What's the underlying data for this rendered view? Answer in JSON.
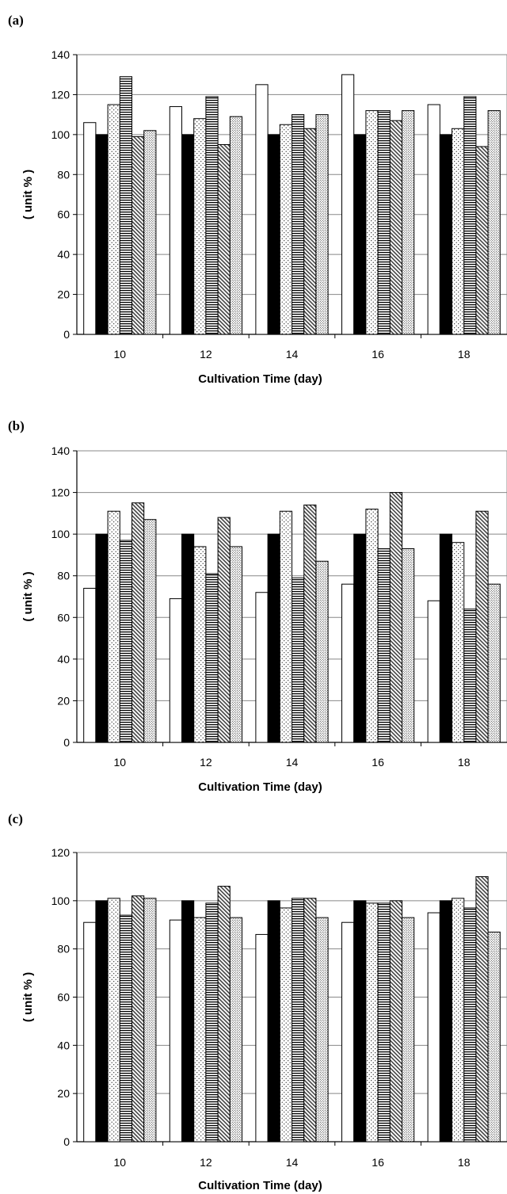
{
  "chart_data": [
    {
      "panel_label": "(a)",
      "type": "bar",
      "categories": [
        "10",
        "12",
        "14",
        "16",
        "18"
      ],
      "series": [
        {
          "values": [
            106,
            114,
            125,
            130,
            115
          ],
          "pattern": "white"
        },
        {
          "values": [
            100,
            100,
            100,
            100,
            100
          ],
          "pattern": "black"
        },
        {
          "values": [
            115,
            108,
            105,
            112,
            103
          ],
          "pattern": "dots"
        },
        {
          "values": [
            129,
            119,
            110,
            112,
            119
          ],
          "pattern": "hlines"
        },
        {
          "values": [
            99,
            95,
            103,
            107,
            94
          ],
          "pattern": "diag"
        },
        {
          "values": [
            102,
            109,
            110,
            112,
            112
          ],
          "pattern": "dense-dots"
        }
      ],
      "xlabel": "Cultivation Time (day)",
      "ylabel": "( unit % )",
      "ylim": [
        0,
        140
      ],
      "yticks": [
        "0",
        "20",
        "40",
        "60",
        "80",
        "100",
        "120",
        "140"
      ],
      "grid": true
    },
    {
      "panel_label": "(b)",
      "type": "bar",
      "categories": [
        "10",
        "12",
        "14",
        "16",
        "18"
      ],
      "series": [
        {
          "values": [
            74,
            69,
            72,
            76,
            68
          ],
          "pattern": "white"
        },
        {
          "values": [
            100,
            100,
            100,
            100,
            100
          ],
          "pattern": "black"
        },
        {
          "values": [
            111,
            94,
            111,
            112,
            96
          ],
          "pattern": "dots"
        },
        {
          "values": [
            97,
            81,
            79,
            93,
            64
          ],
          "pattern": "hlines"
        },
        {
          "values": [
            115,
            108,
            114,
            120,
            111
          ],
          "pattern": "diag"
        },
        {
          "values": [
            107,
            94,
            87,
            93,
            76
          ],
          "pattern": "dense-dots"
        }
      ],
      "xlabel": "Cultivation Time (day)",
      "ylabel": "( unit % )",
      "ylim": [
        0,
        140
      ],
      "yticks": [
        "0",
        "20",
        "40",
        "60",
        "80",
        "100",
        "120",
        "140"
      ],
      "grid": true
    },
    {
      "panel_label": "(c)",
      "type": "bar",
      "categories": [
        "10",
        "12",
        "14",
        "16",
        "18"
      ],
      "series": [
        {
          "values": [
            91,
            92,
            86,
            91,
            95
          ],
          "pattern": "white"
        },
        {
          "values": [
            100,
            100,
            100,
            100,
            100
          ],
          "pattern": "black"
        },
        {
          "values": [
            101,
            93,
            97,
            99,
            101
          ],
          "pattern": "dots"
        },
        {
          "values": [
            94,
            99,
            101,
            99,
            97
          ],
          "pattern": "hlines"
        },
        {
          "values": [
            102,
            106,
            101,
            100,
            110
          ],
          "pattern": "diag"
        },
        {
          "values": [
            101,
            93,
            93,
            93,
            87
          ],
          "pattern": "dense-dots"
        }
      ],
      "xlabel": "Cultivation Time (day)",
      "ylabel": "( unit % )",
      "ylim": [
        0,
        120
      ],
      "yticks": [
        "0",
        "20",
        "40",
        "60",
        "80",
        "100",
        "120"
      ],
      "grid": true
    }
  ]
}
